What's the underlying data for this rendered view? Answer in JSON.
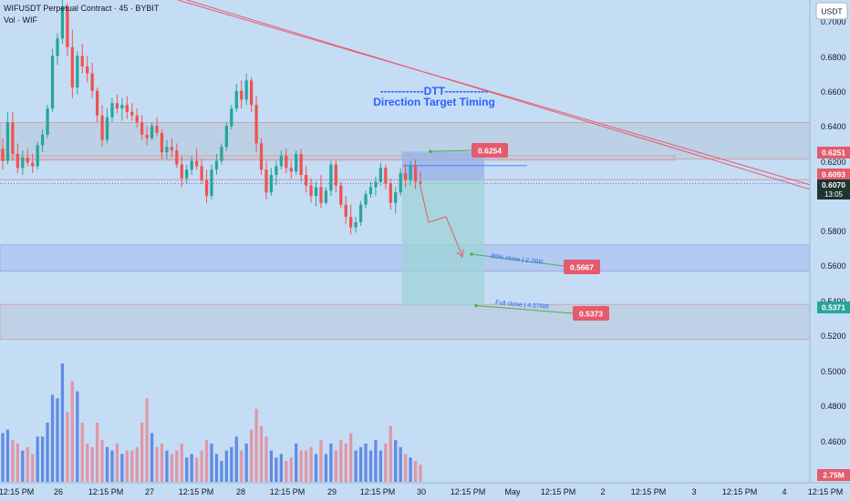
{
  "header": {
    "title": "WIFUSDT Perpetual Contract · 45 · BYBIT",
    "volume_label": "Vol · WIF"
  },
  "price_scale": {
    "currency": "USDT",
    "ticks": [
      "0.7000",
      "0.6800",
      "0.6600",
      "0.6400",
      "0.6200",
      "0.5800",
      "0.5600",
      "0.5400",
      "0.5200",
      "0.5000",
      "0.4800",
      "0.4600"
    ],
    "current_price": "0.6070",
    "countdown": "13:05",
    "tags": [
      {
        "text": "0.6251",
        "color": "#e45b6d"
      },
      {
        "text": "0.6093",
        "color": "#e45b6d"
      },
      {
        "text": "0.5371",
        "color": "#26a69a"
      }
    ],
    "volume_tag": "2.75M"
  },
  "time_scale": {
    "ticks": [
      "12:15 PM",
      "26",
      "12:15 PM",
      "27",
      "12:15 PM",
      "28",
      "12:15 PM",
      "29",
      "12:15 PM",
      "30",
      "12:15 PM",
      "May",
      "12:15 PM",
      "2",
      "12:15 PM",
      "3",
      "12:15 PM",
      "4",
      "12:15 PM"
    ]
  },
  "annotations": {
    "dtt_line1": "------------DTT------------",
    "dtt_line2": "Direction Target Timing",
    "entry_label": "0.6254",
    "tp1_text": "80% close | 2.7RR",
    "tp1_label": "0.5667",
    "tp2_text": "Full close | 4.57RR",
    "tp2_label": "0.5373"
  },
  "colors": {
    "background": "#c5dcf5",
    "up": "#26a69a",
    "down": "#ef5350",
    "trendline": "#e45b6d",
    "label_red": "#e45b6d",
    "dtt_text": "#2962ff"
  },
  "chart_data": {
    "type": "candlestick",
    "symbol": "WIFUSDT",
    "interval": "45",
    "exchange": "BYBIT",
    "y_range": [
      0.455,
      0.712
    ],
    "price_candles": [
      [
        0.627,
        0.633,
        0.615,
        0.62
      ],
      [
        0.62,
        0.648,
        0.618,
        0.642
      ],
      [
        0.642,
        0.648,
        0.62,
        0.624
      ],
      [
        0.624,
        0.63,
        0.613,
        0.616
      ],
      [
        0.616,
        0.626,
        0.612,
        0.622
      ],
      [
        0.622,
        0.627,
        0.617,
        0.619
      ],
      [
        0.619,
        0.624,
        0.613,
        0.617
      ],
      [
        0.617,
        0.631,
        0.615,
        0.629
      ],
      [
        0.629,
        0.638,
        0.625,
        0.635
      ],
      [
        0.635,
        0.652,
        0.633,
        0.65
      ],
      [
        0.65,
        0.684,
        0.648,
        0.68
      ],
      [
        0.68,
        0.693,
        0.675,
        0.69
      ],
      [
        0.69,
        0.712,
        0.687,
        0.708
      ],
      [
        0.708,
        0.71,
        0.68,
        0.685
      ],
      [
        0.685,
        0.695,
        0.656,
        0.662
      ],
      [
        0.662,
        0.683,
        0.658,
        0.68
      ],
      [
        0.68,
        0.687,
        0.67,
        0.674
      ],
      [
        0.674,
        0.68,
        0.665,
        0.67
      ],
      [
        0.67,
        0.676,
        0.656,
        0.66
      ],
      [
        0.66,
        0.662,
        0.642,
        0.646
      ],
      [
        0.646,
        0.652,
        0.628,
        0.632
      ],
      [
        0.632,
        0.65,
        0.63,
        0.645
      ],
      [
        0.645,
        0.656,
        0.642,
        0.653
      ],
      [
        0.653,
        0.658,
        0.647,
        0.65
      ],
      [
        0.65,
        0.656,
        0.643,
        0.652
      ],
      [
        0.652,
        0.657,
        0.644,
        0.648
      ],
      [
        0.648,
        0.653,
        0.643,
        0.646
      ],
      [
        0.646,
        0.65,
        0.639,
        0.642
      ],
      [
        0.642,
        0.646,
        0.632,
        0.635
      ],
      [
        0.635,
        0.64,
        0.629,
        0.633
      ],
      [
        0.633,
        0.642,
        0.632,
        0.64
      ],
      [
        0.64,
        0.645,
        0.634,
        0.636
      ],
      [
        0.636,
        0.638,
        0.621,
        0.625
      ],
      [
        0.625,
        0.632,
        0.621,
        0.628
      ],
      [
        0.628,
        0.633,
        0.622,
        0.626
      ],
      [
        0.626,
        0.63,
        0.616,
        0.618
      ],
      [
        0.618,
        0.623,
        0.605,
        0.61
      ],
      [
        0.61,
        0.618,
        0.607,
        0.615
      ],
      [
        0.615,
        0.623,
        0.612,
        0.62
      ],
      [
        0.62,
        0.627,
        0.615,
        0.617
      ],
      [
        0.617,
        0.621,
        0.607,
        0.609
      ],
      [
        0.609,
        0.615,
        0.596,
        0.6
      ],
      [
        0.6,
        0.618,
        0.598,
        0.615
      ],
      [
        0.615,
        0.624,
        0.612,
        0.62
      ],
      [
        0.62,
        0.63,
        0.618,
        0.628
      ],
      [
        0.628,
        0.642,
        0.626,
        0.64
      ],
      [
        0.64,
        0.652,
        0.638,
        0.65
      ],
      [
        0.65,
        0.664,
        0.648,
        0.66
      ],
      [
        0.66,
        0.666,
        0.65,
        0.655
      ],
      [
        0.655,
        0.67,
        0.652,
        0.666
      ],
      [
        0.666,
        0.668,
        0.648,
        0.652
      ],
      [
        0.652,
        0.657,
        0.625,
        0.63
      ],
      [
        0.63,
        0.633,
        0.612,
        0.615
      ],
      [
        0.615,
        0.62,
        0.598,
        0.602
      ],
      [
        0.602,
        0.616,
        0.6,
        0.612
      ],
      [
        0.612,
        0.62,
        0.606,
        0.617
      ],
      [
        0.617,
        0.626,
        0.615,
        0.623
      ],
      [
        0.623,
        0.627,
        0.613,
        0.616
      ],
      [
        0.616,
        0.62,
        0.61,
        0.614
      ],
      [
        0.614,
        0.626,
        0.612,
        0.624
      ],
      [
        0.624,
        0.627,
        0.608,
        0.612
      ],
      [
        0.612,
        0.617,
        0.602,
        0.606
      ],
      [
        0.606,
        0.61,
        0.596,
        0.6
      ],
      [
        0.6,
        0.608,
        0.594,
        0.605
      ],
      [
        0.605,
        0.612,
        0.593,
        0.596
      ],
      [
        0.596,
        0.605,
        0.595,
        0.603
      ],
      [
        0.603,
        0.62,
        0.6,
        0.618
      ],
      [
        0.618,
        0.62,
        0.602,
        0.606
      ],
      [
        0.606,
        0.608,
        0.593,
        0.595
      ],
      [
        0.595,
        0.6,
        0.584,
        0.588
      ],
      [
        0.588,
        0.595,
        0.578,
        0.582
      ],
      [
        0.582,
        0.588,
        0.579,
        0.585
      ],
      [
        0.585,
        0.597,
        0.583,
        0.595
      ],
      [
        0.595,
        0.603,
        0.593,
        0.601
      ],
      [
        0.601,
        0.608,
        0.599,
        0.605
      ],
      [
        0.605,
        0.611,
        0.6,
        0.608
      ],
      [
        0.608,
        0.619,
        0.606,
        0.616
      ],
      [
        0.616,
        0.618,
        0.604,
        0.607
      ],
      [
        0.607,
        0.61,
        0.592,
        0.596
      ],
      [
        0.596,
        0.605,
        0.59,
        0.602
      ],
      [
        0.602,
        0.616,
        0.6,
        0.613
      ],
      [
        0.613,
        0.618,
        0.605,
        0.609
      ],
      [
        0.609,
        0.62,
        0.606,
        0.617
      ],
      [
        0.617,
        0.621,
        0.604,
        0.608
      ],
      [
        0.608,
        0.614,
        0.605,
        0.607
      ]
    ],
    "volume_bars": [
      [
        1.4,
        "up"
      ],
      [
        1.5,
        "up"
      ],
      [
        1.2,
        "down"
      ],
      [
        1.1,
        "down"
      ],
      [
        0.9,
        "up"
      ],
      [
        1.0,
        "down"
      ],
      [
        0.8,
        "down"
      ],
      [
        1.3,
        "up"
      ],
      [
        1.3,
        "up"
      ],
      [
        1.7,
        "up"
      ],
      [
        2.5,
        "up"
      ],
      [
        2.4,
        "up"
      ],
      [
        3.4,
        "up"
      ],
      [
        2.0,
        "down"
      ],
      [
        2.9,
        "down"
      ],
      [
        2.6,
        "up"
      ],
      [
        1.7,
        "down"
      ],
      [
        1.1,
        "down"
      ],
      [
        1.0,
        "down"
      ],
      [
        1.7,
        "down"
      ],
      [
        1.2,
        "down"
      ],
      [
        1.0,
        "up"
      ],
      [
        0.9,
        "up"
      ],
      [
        1.1,
        "down"
      ],
      [
        0.8,
        "up"
      ],
      [
        0.9,
        "down"
      ],
      [
        0.9,
        "down"
      ],
      [
        1.0,
        "down"
      ],
      [
        1.7,
        "down"
      ],
      [
        2.4,
        "down"
      ],
      [
        1.4,
        "up"
      ],
      [
        1.0,
        "down"
      ],
      [
        1.1,
        "down"
      ],
      [
        0.9,
        "up"
      ],
      [
        0.8,
        "down"
      ],
      [
        0.9,
        "down"
      ],
      [
        1.1,
        "down"
      ],
      [
        0.7,
        "up"
      ],
      [
        0.8,
        "up"
      ],
      [
        0.7,
        "down"
      ],
      [
        0.9,
        "down"
      ],
      [
        1.2,
        "down"
      ],
      [
        1.1,
        "up"
      ],
      [
        0.8,
        "up"
      ],
      [
        0.6,
        "up"
      ],
      [
        0.9,
        "up"
      ],
      [
        1.0,
        "up"
      ],
      [
        1.3,
        "up"
      ],
      [
        0.9,
        "down"
      ],
      [
        1.1,
        "up"
      ],
      [
        1.5,
        "down"
      ],
      [
        2.1,
        "down"
      ],
      [
        1.6,
        "down"
      ],
      [
        1.3,
        "down"
      ],
      [
        0.9,
        "up"
      ],
      [
        0.7,
        "up"
      ],
      [
        0.8,
        "up"
      ],
      [
        0.6,
        "down"
      ],
      [
        0.7,
        "down"
      ],
      [
        1.1,
        "up"
      ],
      [
        0.9,
        "down"
      ],
      [
        0.9,
        "down"
      ],
      [
        1.0,
        "down"
      ],
      [
        0.8,
        "up"
      ],
      [
        1.2,
        "down"
      ],
      [
        0.8,
        "up"
      ],
      [
        1.1,
        "up"
      ],
      [
        0.9,
        "down"
      ],
      [
        1.2,
        "down"
      ],
      [
        1.1,
        "down"
      ],
      [
        1.4,
        "down"
      ],
      [
        0.9,
        "up"
      ],
      [
        1.0,
        "up"
      ],
      [
        1.1,
        "up"
      ],
      [
        0.9,
        "up"
      ],
      [
        1.2,
        "up"
      ],
      [
        0.9,
        "up"
      ],
      [
        1.1,
        "down"
      ],
      [
        1.6,
        "down"
      ],
      [
        1.2,
        "up"
      ],
      [
        1.0,
        "up"
      ],
      [
        0.8,
        "down"
      ],
      [
        0.7,
        "up"
      ],
      [
        0.6,
        "down"
      ],
      [
        0.5,
        "down"
      ]
    ],
    "levels": {
      "entry": 0.6254,
      "current": 0.607,
      "stop": 0.6093,
      "short_stop_level": 0.6251,
      "tp1": 0.5667,
      "tp2": 0.5373
    }
  }
}
